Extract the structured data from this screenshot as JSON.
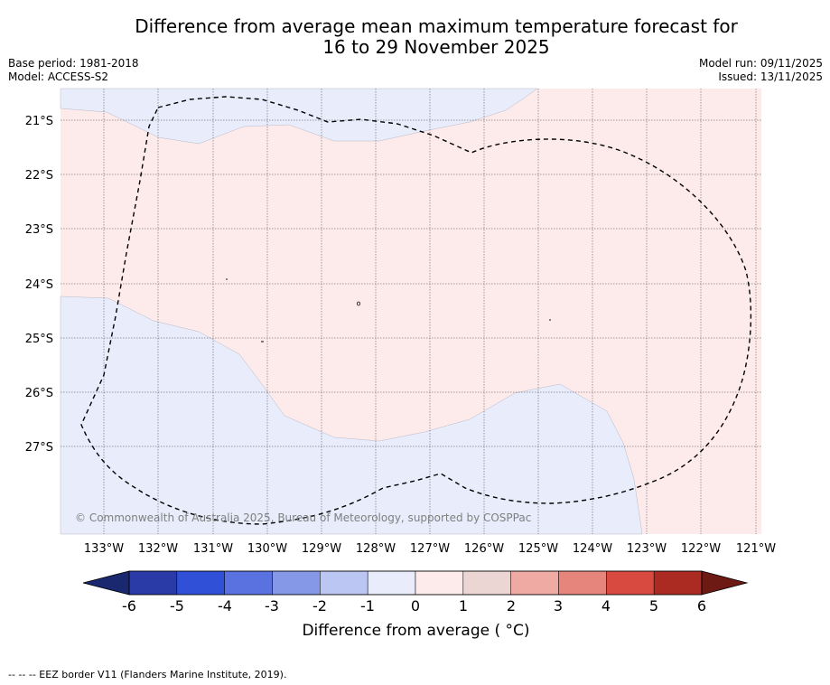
{
  "title_line1": "Difference from average mean maximum temperature forecast for",
  "title_line2": "16 to 29 November 2025",
  "base_period": "Base period: 1981-2018",
  "model": "Model: ACCESS-S2",
  "model_run": "Model run: 09/11/2025",
  "issued": "Issued: 13/11/2025",
  "copyright": "© Commonwealth of Australia 2025, Bureau of Meteorology, supported by COSPPac",
  "lat_labels": [
    "21°S",
    "22°S",
    "23°S",
    "24°S",
    "25°S",
    "26°S",
    "27°S"
  ],
  "lon_labels": [
    "133°W",
    "132°W",
    "131°W",
    "130°W",
    "129°W",
    "128°W",
    "127°W",
    "126°W",
    "125°W",
    "124°W",
    "123°W",
    "122°W",
    "121°W"
  ],
  "legend": {
    "ticks": [
      "-6",
      "-5",
      "-4",
      "-3",
      "-2",
      "-1",
      "0",
      "1",
      "2",
      "3",
      "4",
      "5",
      "6"
    ],
    "colors": [
      "#2a3ba8",
      "#3150d8",
      "#5a72e0",
      "#8598e8",
      "#bcc6f2",
      "#e8ecfb",
      "#fcebea",
      "#ebd6d4",
      "#eeaaa3",
      "#e5857c",
      "#d84a40",
      "#ab2a22"
    ],
    "low_color": "#1a2870",
    "high_color": "#6e1a14",
    "label": "Difference from average ( °C)"
  },
  "fill_colors": {
    "cool": "#e8ecfb",
    "warm": "#fcebea"
  },
  "footer": "-- -- -- EEZ border V11 (Flanders Marine Institute, 2019)."
}
